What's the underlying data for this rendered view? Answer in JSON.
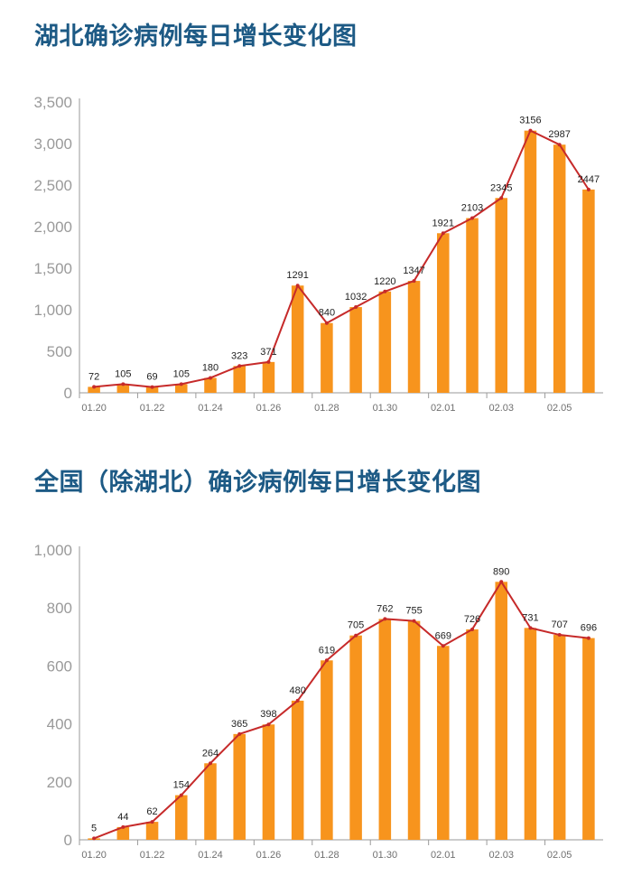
{
  "colors": {
    "bar": "#f7941d",
    "line": "#c62a2a",
    "title": "#1d5a85",
    "grid": "#dddddd",
    "axis": "#9a9a9a"
  },
  "chart_data": [
    {
      "type": "bar",
      "title": "湖北确诊病例每日增长变化图",
      "overlay": "line",
      "categories": [
        "01.20",
        "01.21",
        "01.22",
        "01.23",
        "01.24",
        "01.25",
        "01.26",
        "01.27",
        "01.28",
        "01.29",
        "01.30",
        "01.31",
        "02.01",
        "02.02",
        "02.03",
        "02.04",
        "02.05",
        "02.06"
      ],
      "x_tick_labels": [
        "01.20",
        "01.22",
        "01.24",
        "01.26",
        "01.28",
        "01.30",
        "02.01",
        "02.03",
        "02.05"
      ],
      "values": [
        72,
        105,
        69,
        105,
        180,
        323,
        371,
        1291,
        840,
        1032,
        1220,
        1347,
        1921,
        2103,
        2345,
        3156,
        2987,
        2447
      ],
      "y_ticks": [
        "0",
        "500",
        "1,000",
        "1,500",
        "2,000",
        "2,500",
        "3,000",
        "3,500"
      ],
      "ylim": [
        0,
        3500
      ],
      "grid": false
    },
    {
      "type": "bar",
      "title": "全国（除湖北）确诊病例每日增长变化图",
      "overlay": "line",
      "categories": [
        "01.20",
        "01.21",
        "01.22",
        "01.23",
        "01.24",
        "01.25",
        "01.26",
        "01.27",
        "01.28",
        "01.29",
        "01.30",
        "01.31",
        "02.01",
        "02.02",
        "02.03",
        "02.04",
        "02.05",
        "02.06"
      ],
      "x_tick_labels": [
        "01.20",
        "01.22",
        "01.24",
        "01.26",
        "01.28",
        "01.30",
        "02.01",
        "02.03",
        "02.05"
      ],
      "values": [
        5,
        44,
        62,
        154,
        264,
        365,
        398,
        480,
        619,
        705,
        762,
        755,
        669,
        726,
        890,
        731,
        707,
        696
      ],
      "y_ticks": [
        "0",
        "200",
        "400",
        "600",
        "800",
        "1,000"
      ],
      "ylim": [
        0,
        1000
      ],
      "grid": false
    }
  ]
}
